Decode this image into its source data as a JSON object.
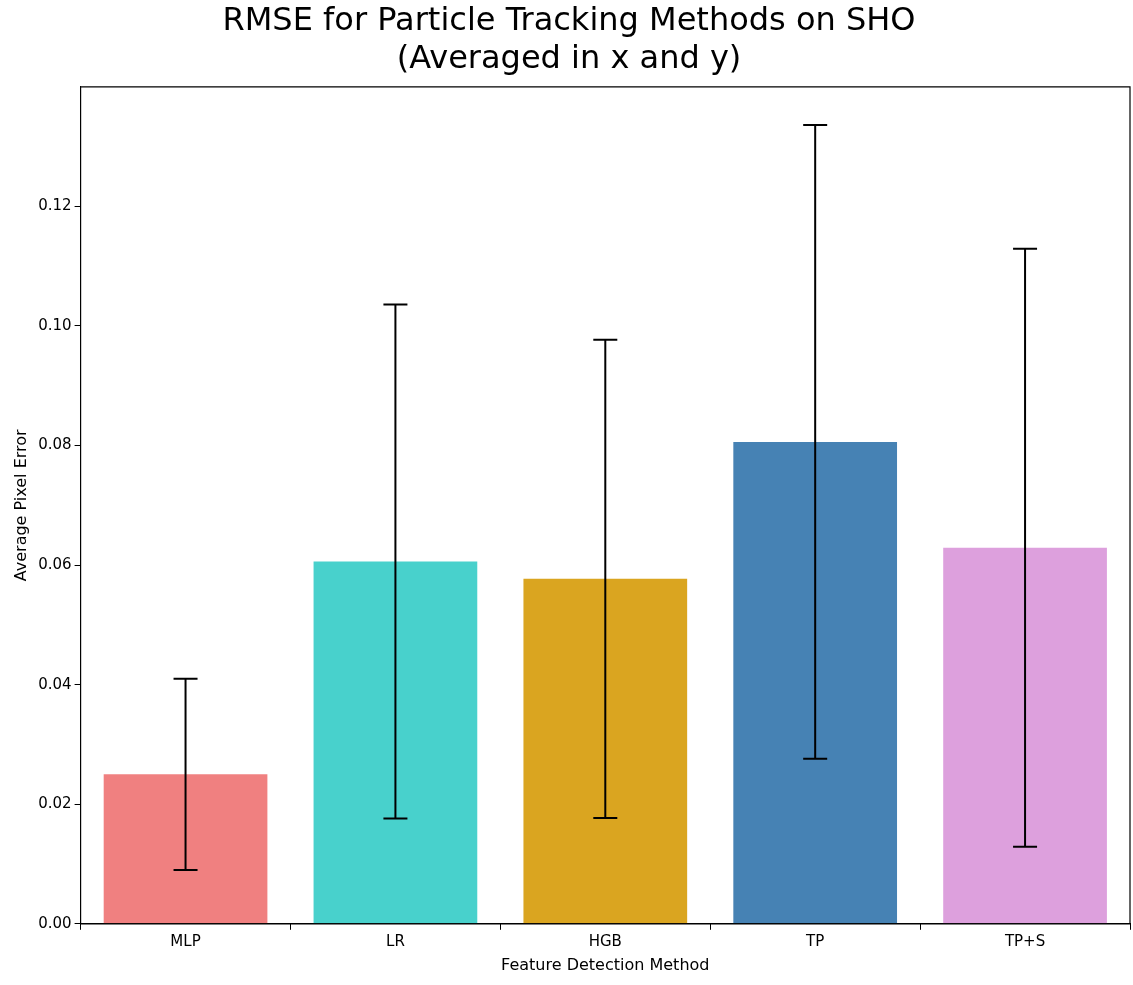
{
  "chart_data": {
    "type": "bar",
    "title": "RMSE for Particle Tracking Methods on SHO\n(Averaged in x and y)",
    "xlabel": "Feature Detection Method",
    "ylabel": "Average Pixel Error",
    "categories": [
      "MLP",
      "LR",
      "HGB",
      "TP",
      "TP+S"
    ],
    "values": [
      0.025,
      0.0606,
      0.0577,
      0.0806,
      0.0629
    ],
    "errors": [
      0.016,
      0.043,
      0.04,
      0.053,
      0.05
    ],
    "colors": [
      "#f08080",
      "#48d1cc",
      "#daa520",
      "#4682b4",
      "#dda0dd"
    ],
    "ylim": [
      0,
      0.14
    ],
    "yticks": [
      {
        "value": 0,
        "label": "0.00"
      },
      {
        "value": 0.02,
        "label": "0.02"
      },
      {
        "value": 0.04,
        "label": "0.04"
      },
      {
        "value": 0.06,
        "label": "0.06"
      },
      {
        "value": 0.08,
        "label": "0.08"
      },
      {
        "value": 0.1,
        "label": "0.10"
      },
      {
        "value": 0.12,
        "label": "0.12"
      }
    ],
    "grid": false,
    "legend": false
  }
}
